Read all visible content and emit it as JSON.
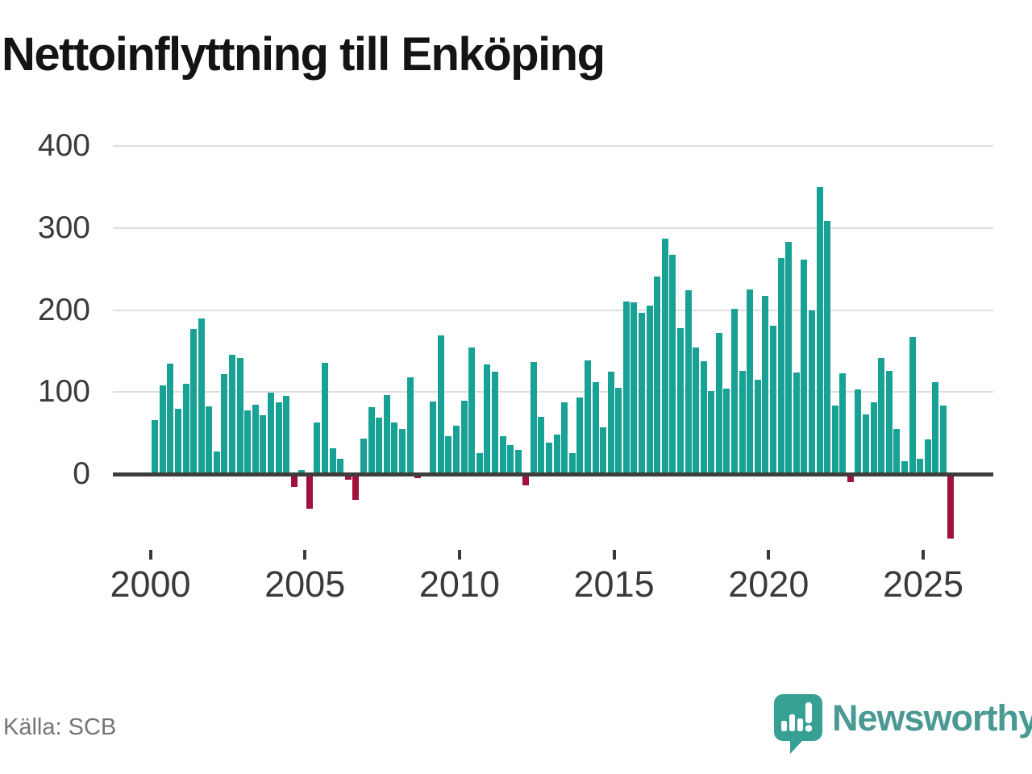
{
  "title": "Nettoinflyttning till Enköping",
  "source": "Källa: SCB",
  "brand": {
    "name": "Newsworthy",
    "text_color": "#4a9a93",
    "icon_color": "#35a093"
  },
  "chart_data": {
    "type": "bar",
    "title": "Nettoinflyttning till Enköping",
    "x_unit": "quarter",
    "x_range": [
      "2000Q1",
      "2025Q4"
    ],
    "x_tick_labels": [
      "2000",
      "2005",
      "2010",
      "2015",
      "2020",
      "2025"
    ],
    "y_tick_labels": [
      "0",
      "100",
      "200",
      "300",
      "400"
    ],
    "gridline_values": [
      100,
      200,
      300,
      400
    ],
    "ylim": [
      -90,
      410
    ],
    "grid": true,
    "legend": false,
    "positive_color": "#17a295",
    "negative_color": "#a0123c",
    "series": [
      {
        "name": "Nettoinflyttning",
        "values": [
          66,
          108,
          135,
          80,
          110,
          177,
          190,
          83,
          28,
          122,
          146,
          142,
          78,
          85,
          72,
          99,
          88,
          95,
          -14,
          5,
          -40,
          63,
          136,
          31,
          19,
          -5,
          -30,
          43,
          82,
          69,
          96,
          63,
          55,
          118,
          -3,
          0,
          89,
          169,
          46,
          59,
          90,
          154,
          26,
          134,
          125,
          46,
          35,
          30,
          -12,
          137,
          70,
          38,
          48,
          88,
          26,
          93,
          139,
          112,
          57,
          125,
          105,
          211,
          210,
          197,
          206,
          241,
          287,
          268,
          178,
          224,
          154,
          138,
          101,
          172,
          104,
          202,
          126,
          225,
          115,
          217,
          181,
          264,
          283,
          124,
          262,
          200,
          350,
          309,
          84,
          123,
          -8,
          103,
          73,
          88,
          142,
          126,
          55,
          16,
          167,
          19,
          42,
          112,
          84,
          -77
        ]
      }
    ]
  }
}
